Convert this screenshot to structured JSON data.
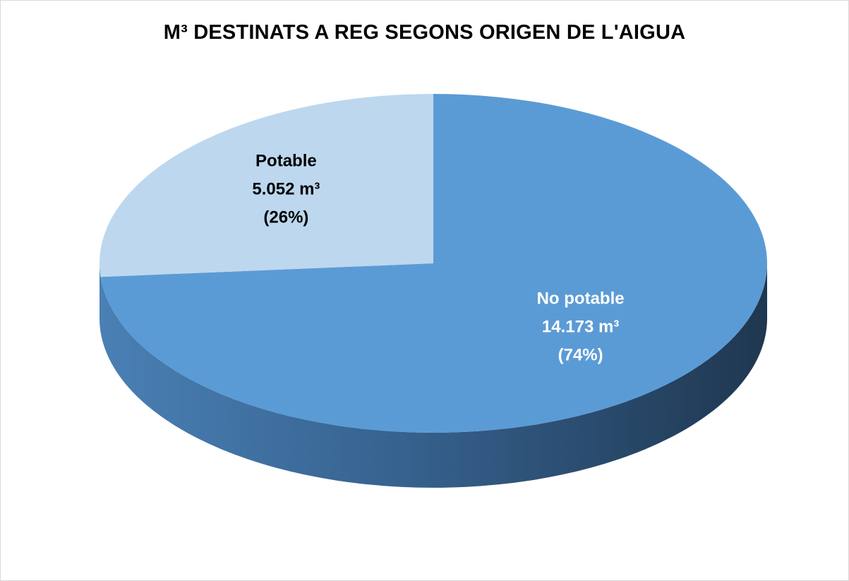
{
  "chart_data": {
    "type": "pie",
    "title": "M³ DESTINATS A REG SEGONS ORIGEN DE L'AIGUA",
    "slices": [
      {
        "name": "No potable",
        "value": 14173,
        "value_label": "14.173 m³",
        "percent_label": "(74%)",
        "color": "#5b9bd5"
      },
      {
        "name": "Potable",
        "value": 5052,
        "value_label": "5.052 m³",
        "percent_label": "(26%)",
        "color": "#bdd7ee"
      }
    ]
  }
}
